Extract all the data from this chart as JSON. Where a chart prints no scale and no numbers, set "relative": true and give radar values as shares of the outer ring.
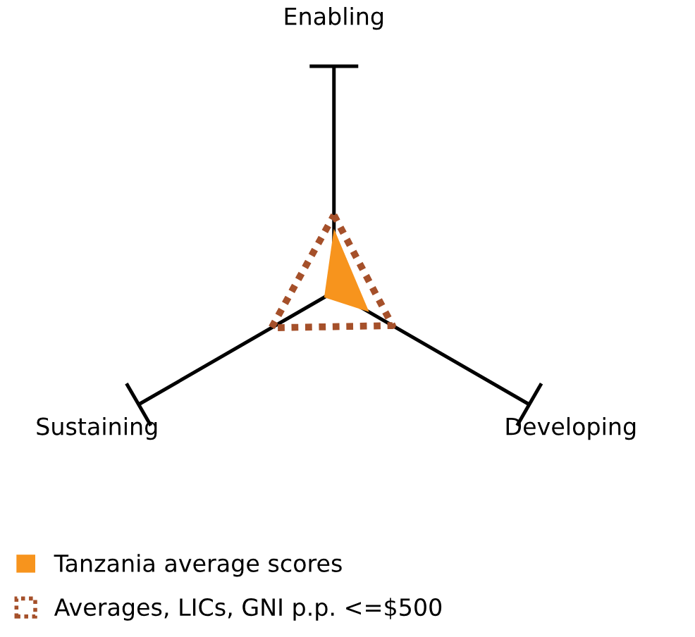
{
  "chart_data": {
    "type": "radar",
    "relative": true,
    "categories": [
      "Enabling",
      "Developing",
      "Sustaining"
    ],
    "series": [
      {
        "name": "Tanzania average scores",
        "color": "#f7941d",
        "values": [
          0.28,
          0.18,
          0.05
        ]
      },
      {
        "name": "Averages, LICs, GNI p.p. <=$500",
        "color": "#a5502a",
        "values": [
          0.34,
          0.3,
          0.32
        ],
        "line_style": "dotted"
      }
    ],
    "legend": "bottom left"
  }
}
